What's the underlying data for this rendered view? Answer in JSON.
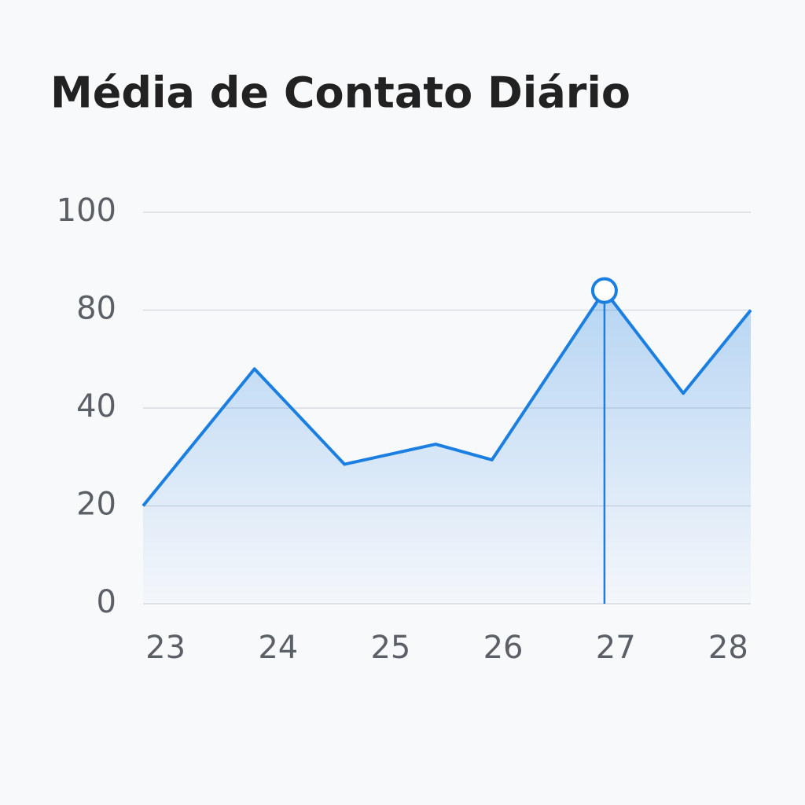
{
  "chart_data": {
    "type": "area",
    "title": "Média de Contato Diário",
    "x": [
      22.8,
      23.79,
      24.59,
      25.4,
      25.9,
      26.9,
      27.6,
      28.2
    ],
    "values": [
      20,
      56,
      28.5,
      32.6,
      29.4,
      84,
      46,
      80
    ],
    "color": "#1a7fe0",
    "xlim": [
      22.8,
      28.2
    ],
    "xticks": [
      23,
      24,
      25,
      26,
      27,
      28
    ],
    "ylim": [
      0,
      100
    ],
    "yticks": [
      0,
      20,
      40,
      80,
      100
    ],
    "grid": true,
    "highlight_index": 5
  }
}
